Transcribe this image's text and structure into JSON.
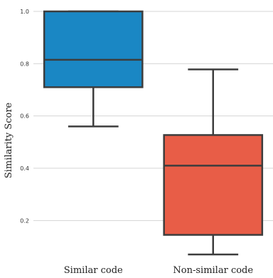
{
  "chart_data": {
    "type": "box",
    "ylabel": "Similarity Score",
    "ylim": [
      0.04,
      1.03
    ],
    "yticks": [
      0.2,
      0.4,
      0.6,
      0.8,
      1.0
    ],
    "ytick_labels": [
      "0.2",
      "0.4",
      "0.6",
      "0.8",
      "1.0"
    ],
    "grid": true,
    "categories": [
      "Similar code",
      "Non-similar code"
    ],
    "boxes": [
      {
        "category": "Similar code",
        "whisker_low": 0.56,
        "q1": 0.71,
        "median": 0.815,
        "q3": 1.0,
        "whisker_high": 1.0,
        "color": "#1a87c4"
      },
      {
        "category": "Non-similar code",
        "whisker_low": 0.07,
        "q1": 0.145,
        "median": 0.41,
        "q3": 0.527,
        "whisker_high": 0.778,
        "color": "#e85d47"
      }
    ]
  }
}
